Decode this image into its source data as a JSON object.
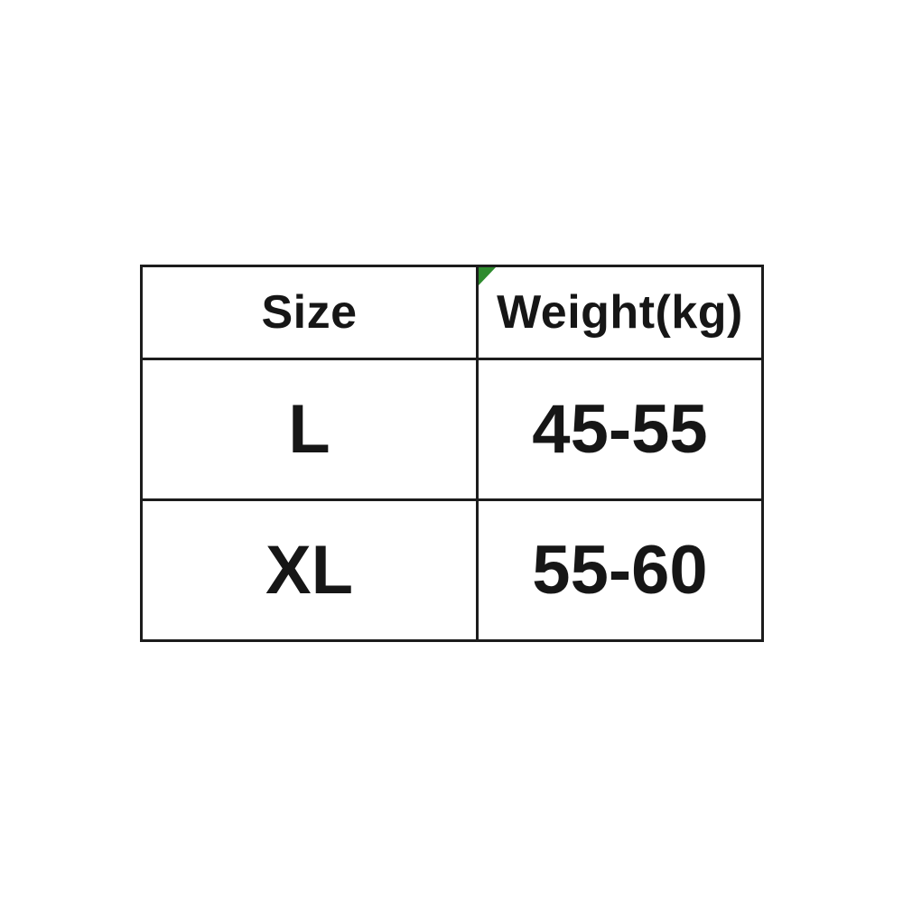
{
  "chart_data": {
    "type": "table",
    "title": "",
    "columns": [
      "Size",
      "Weight(kg)"
    ],
    "rows": [
      [
        "L",
        "45-55"
      ],
      [
        "XL",
        "55-60"
      ]
    ]
  },
  "marker": {
    "name": "green-corner-flag",
    "position": "top-left-of-weight-header-cell",
    "color": "#2e8b2e"
  },
  "colors": {
    "background": "#ffffff",
    "border": "#1c1c1c",
    "text": "#161616"
  }
}
